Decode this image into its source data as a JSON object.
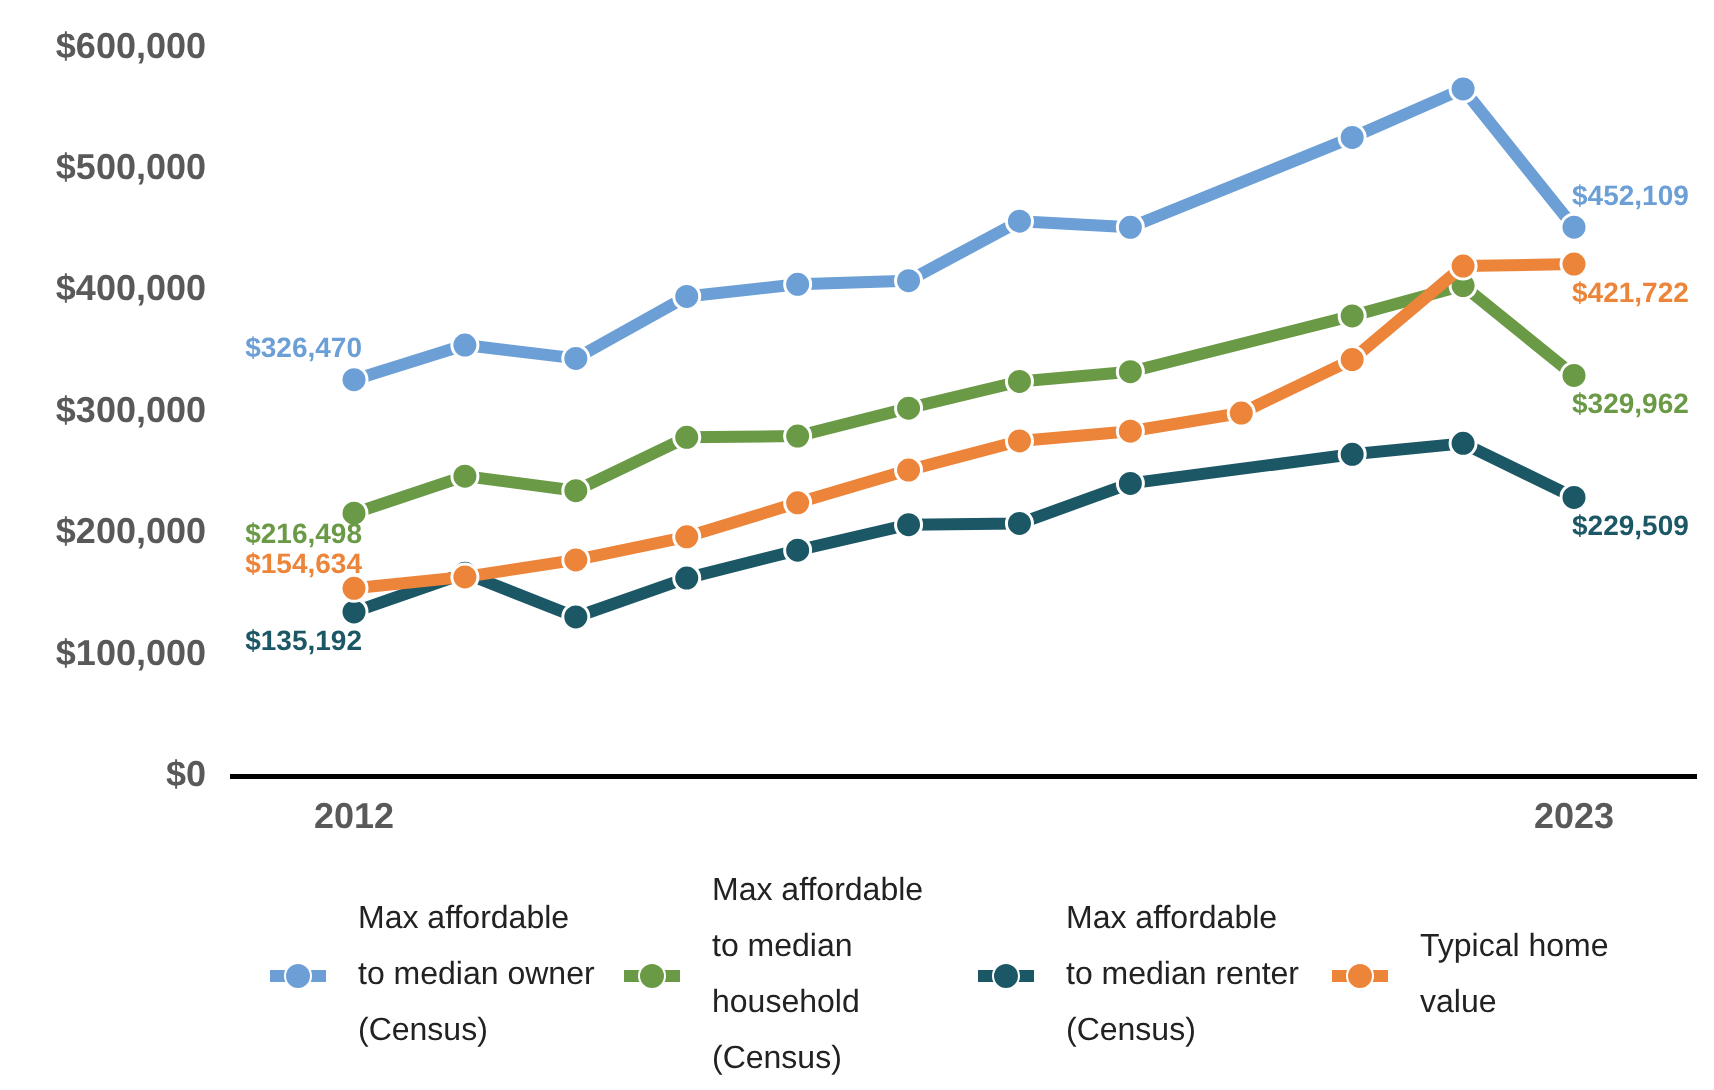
{
  "chart_data": {
    "type": "line",
    "xlim": [
      2010.9,
      2024.1
    ],
    "xticks": [
      2012,
      2023
    ],
    "ylim": [
      0,
      600000
    ],
    "yticks": [
      {
        "value": 0,
        "label": "$0"
      },
      {
        "value": 100000,
        "label": "$100,000"
      },
      {
        "value": 200000,
        "label": "$200,000"
      },
      {
        "value": 300000,
        "label": "$300,000"
      },
      {
        "value": 400000,
        "label": "$400,000"
      },
      {
        "value": 500000,
        "label": "$500,000"
      },
      {
        "value": 600000,
        "label": "$600,000"
      }
    ],
    "grid": false,
    "legend": "bottom",
    "marker": "circle",
    "series": [
      {
        "name": "Max affordable to median owner (Census)",
        "color": "#6b9fd6",
        "x": [
          2012,
          2013,
          2014,
          2015,
          2016,
          2017,
          2018,
          2019,
          2021,
          2022,
          2023
        ],
        "values": [
          326470,
          355000,
          344000,
          395000,
          405000,
          408000,
          457000,
          452000,
          526000,
          566000,
          452109
        ],
        "value_labels": [
          "$326,470",
          null,
          null,
          null,
          null,
          null,
          null,
          null,
          null,
          null,
          "$452,109"
        ]
      },
      {
        "name": "Max affordable to median household (Census)",
        "color": "#6a9a46",
        "x": [
          2012,
          2013,
          2014,
          2015,
          2016,
          2017,
          2018,
          2019,
          2021,
          2022,
          2023
        ],
        "values": [
          216498,
          247000,
          235000,
          279000,
          280000,
          303000,
          325000,
          333000,
          379000,
          404000,
          329962
        ],
        "value_labels": [
          "$216,498",
          null,
          null,
          null,
          null,
          null,
          null,
          null,
          null,
          null,
          "$329,962"
        ]
      },
      {
        "name": "Max affordable to median renter (Census)",
        "color": "#1c5766",
        "x": [
          2012,
          2013,
          2014,
          2015,
          2016,
          2017,
          2018,
          2019,
          2021,
          2022,
          2023
        ],
        "values": [
          135192,
          167000,
          131000,
          163000,
          186000,
          207000,
          208000,
          241000,
          265000,
          274000,
          229509
        ],
        "value_labels": [
          "$135,192",
          null,
          null,
          null,
          null,
          null,
          null,
          null,
          null,
          null,
          "$229,509"
        ]
      },
      {
        "name": "Typical home value",
        "color": "#ec8439",
        "x": [
          2012,
          2013,
          2014,
          2015,
          2016,
          2017,
          2018,
          2019,
          2020,
          2021,
          2022,
          2023
        ],
        "values": [
          154634,
          164000,
          178000,
          197000,
          225000,
          252000,
          276000,
          284000,
          299000,
          343000,
          420000,
          421722
        ],
        "value_labels": [
          "$154,634",
          null,
          null,
          null,
          null,
          null,
          null,
          null,
          null,
          null,
          null,
          "$421,722"
        ]
      }
    ]
  }
}
